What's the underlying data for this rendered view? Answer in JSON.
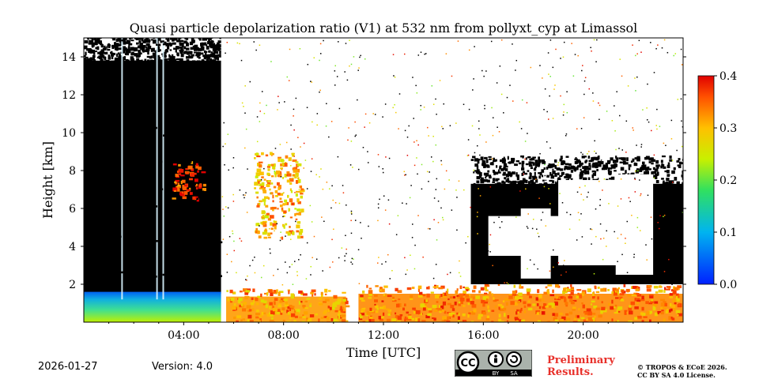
{
  "chart_data": {
    "type": "heatmap",
    "title": "Quasi particle depolarization ratio (V1) at 532 nm from pollyxt_cyp at Limassol",
    "xlabel": "Time [UTC]",
    "ylabel": "Height [km]",
    "xlim": [
      0,
      24
    ],
    "ylim": [
      0,
      15
    ],
    "x_ticks": [
      4,
      8,
      12,
      16,
      20
    ],
    "x_tick_labels": [
      "04:00",
      "08:00",
      "12:00",
      "16:00",
      "20:00"
    ],
    "y_ticks": [
      2,
      4,
      6,
      8,
      10,
      12,
      14
    ],
    "y_tick_labels": [
      "2",
      "4",
      "6",
      "8",
      "10",
      "12",
      "14"
    ],
    "colorbar": {
      "min": 0.0,
      "max": 0.4,
      "ticks": [
        0.0,
        0.1,
        0.2,
        0.3,
        0.4
      ],
      "tick_labels": [
        "0.0",
        "0.1",
        "0.2",
        "0.3",
        "0.4"
      ],
      "colormap": "jet"
    },
    "regions": [
      {
        "name": "black-masked-morning",
        "t0": 0.0,
        "t1": 5.5,
        "h0": 1.5,
        "h1": 15.0,
        "value": "masked"
      },
      {
        "name": "aerosol-layer-morning",
        "t0": 0.0,
        "t1": 5.5,
        "h0": 0.0,
        "h1": 1.6,
        "value": 0.15
      },
      {
        "name": "dust-plume-midday",
        "t0": 5.7,
        "t1": 10.5,
        "h0": 0.0,
        "h1": 1.8,
        "value": 0.32
      },
      {
        "name": "elevated-dust-0430",
        "t0": 3.5,
        "t1": 4.8,
        "h0": 6.5,
        "h1": 8.5,
        "value": 0.36
      },
      {
        "name": "elevated-dust-0800",
        "t0": 6.8,
        "t1": 8.7,
        "h0": 4.5,
        "h1": 9.0,
        "value": 0.3
      },
      {
        "name": "afternoon-dust",
        "t0": 11.0,
        "t1": 24.0,
        "h0": 0.0,
        "h1": 2.0,
        "value": 0.33
      },
      {
        "name": "black-masked-afternoon",
        "t0": 15.5,
        "t1": 24.0,
        "h0": 2.0,
        "h1": 8.5,
        "value": "masked"
      }
    ],
    "y_tick_labels_colorbar_unit": ""
  },
  "footer": {
    "date": "2026-01-27",
    "version": "Version: 4.0",
    "preliminary_line1": "Preliminary",
    "preliminary_line2": "Results.",
    "copyright_line1": "© TROPOS & ECoE 2026.",
    "copyright_line2": "CC BY SA 4.0 License.",
    "cc_label": "CC",
    "by_label": "BY",
    "sa_label": "SA",
    "accent_color": "#e8302a"
  }
}
